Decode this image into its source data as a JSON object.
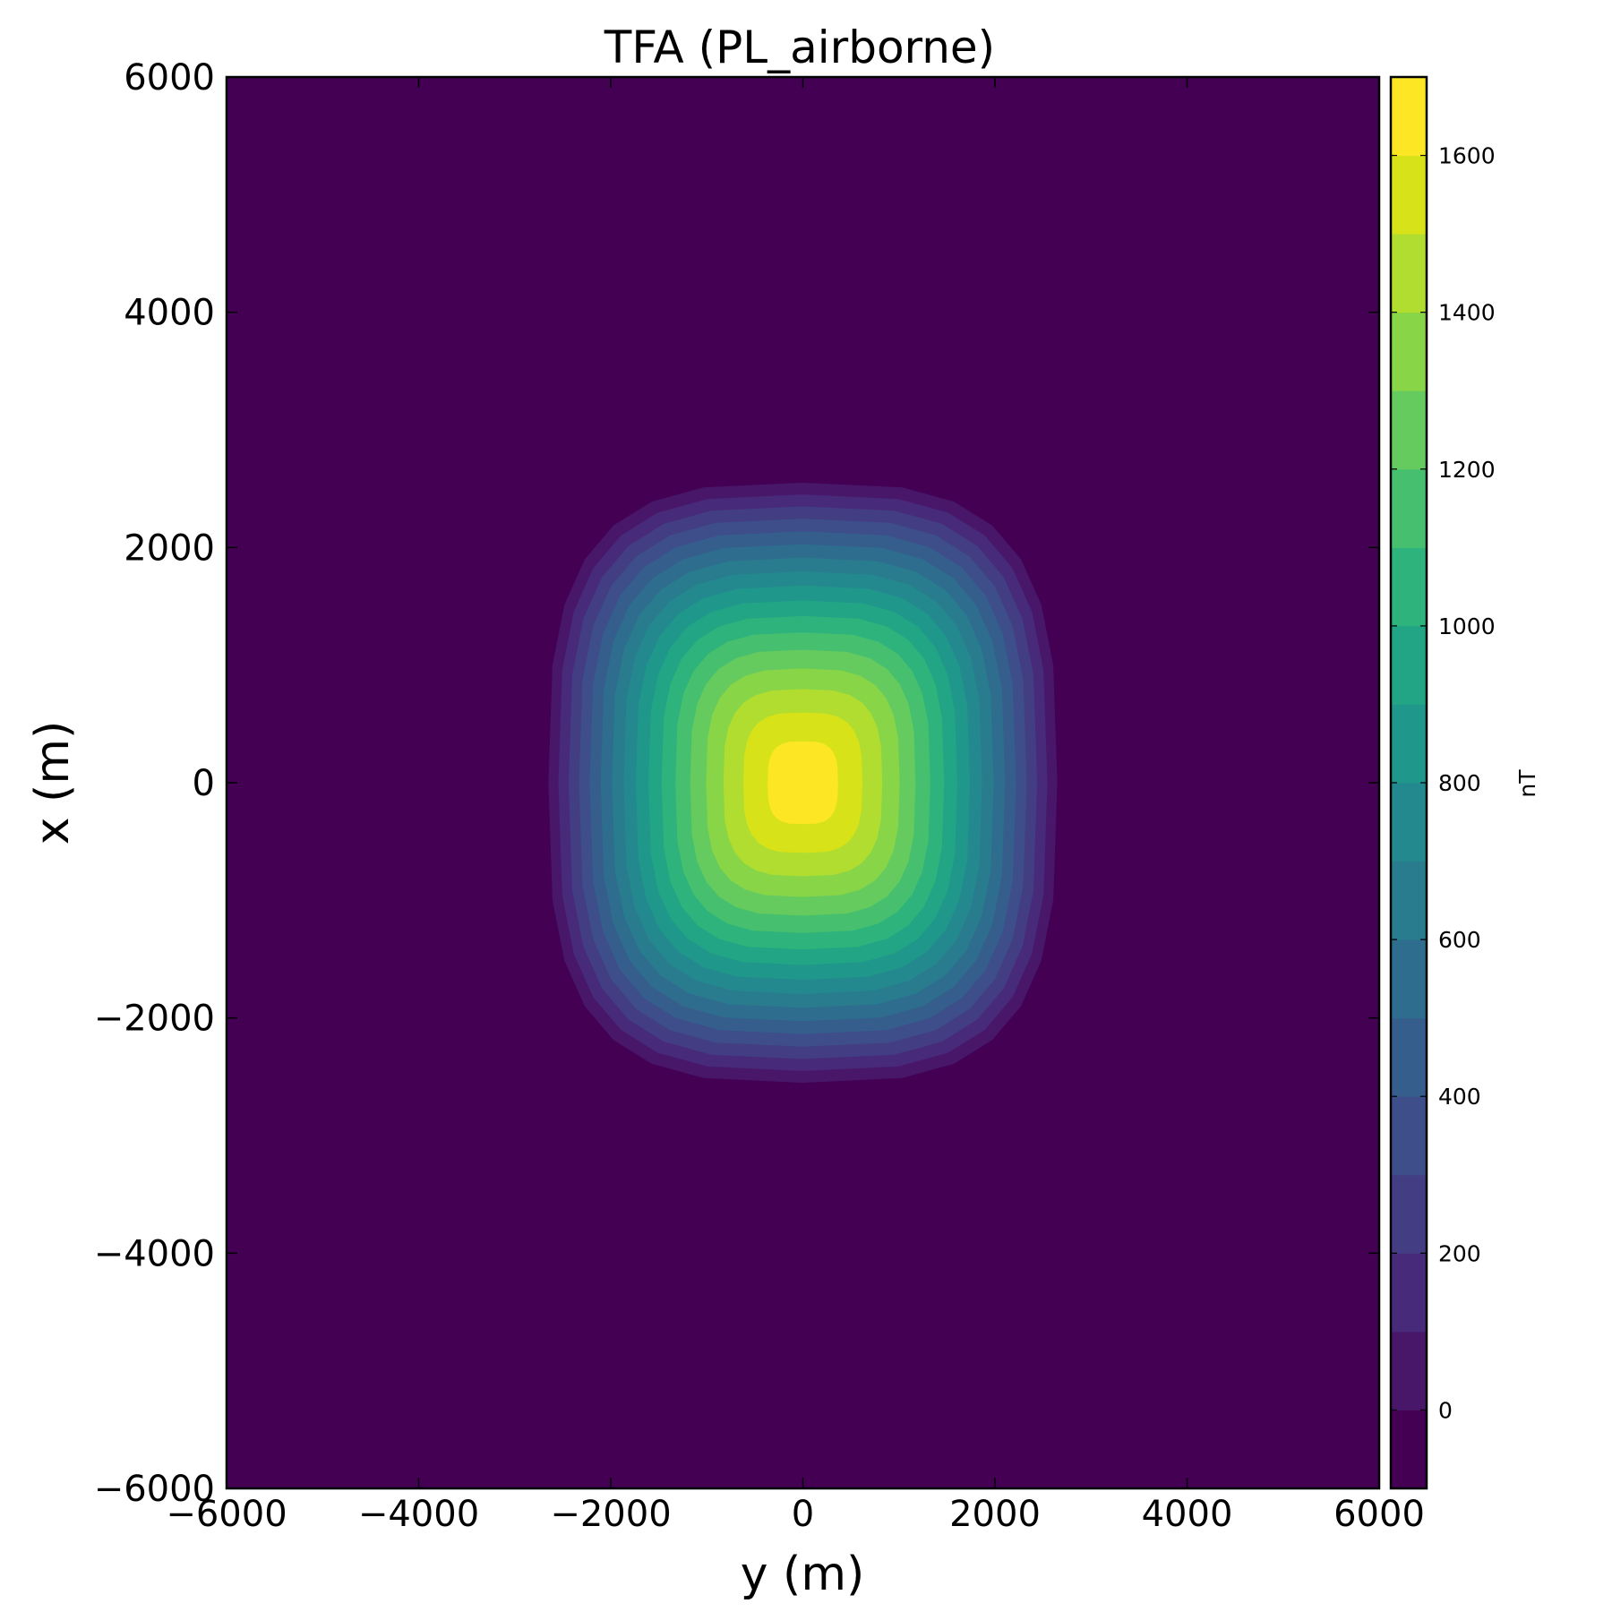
{
  "chart_data": {
    "type": "heatmap",
    "subtype": "filled-contour",
    "title": "TFA (PL_airborne)",
    "xlabel": "y (m)",
    "ylabel": "x (m)",
    "xlim": [
      -6000,
      6000
    ],
    "ylim": [
      -6000,
      6000
    ],
    "xticks": [
      -6000,
      -4000,
      -2000,
      0,
      2000,
      4000,
      6000
    ],
    "yticks": [
      -6000,
      -4000,
      -2000,
      0,
      2000,
      4000,
      6000
    ],
    "xtick_labels": [
      "−6000",
      "−4000",
      "−2000",
      "0",
      "2000",
      "4000",
      "6000"
    ],
    "ytick_labels": [
      "−6000",
      "−4000",
      "−2000",
      "0",
      "2000",
      "4000",
      "6000"
    ],
    "grid": false,
    "colormap": "viridis",
    "colorbar": {
      "label": "nT",
      "range": [
        -100,
        1700
      ],
      "level_step": 100,
      "ticks": [
        0,
        200,
        400,
        600,
        800,
        1000,
        1200,
        1400,
        1600
      ],
      "tick_labels": [
        "0",
        "200",
        "400",
        "600",
        "800",
        "1000",
        "1200",
        "1400",
        "1600"
      ],
      "colors": [
        "#440154",
        "#481769",
        "#472a7a",
        "#433d84",
        "#3d4e8a",
        "#355e8d",
        "#2e6d8e",
        "#297b8e",
        "#23898e",
        "#1f978b",
        "#21a585",
        "#2eb37c",
        "#46c06f",
        "#65cb5e",
        "#89d548",
        "#b0dd2f",
        "#d8e219",
        "#fde725"
      ]
    },
    "anomaly": {
      "center": [
        0,
        0
      ],
      "peak_nT": 1680,
      "background_nT": -50,
      "shape": "ellipse elongated along x (north-south)",
      "outer_contour_extent_y": [
        -2700,
        2700
      ],
      "outer_contour_extent_x": [
        -2600,
        2600
      ]
    }
  }
}
